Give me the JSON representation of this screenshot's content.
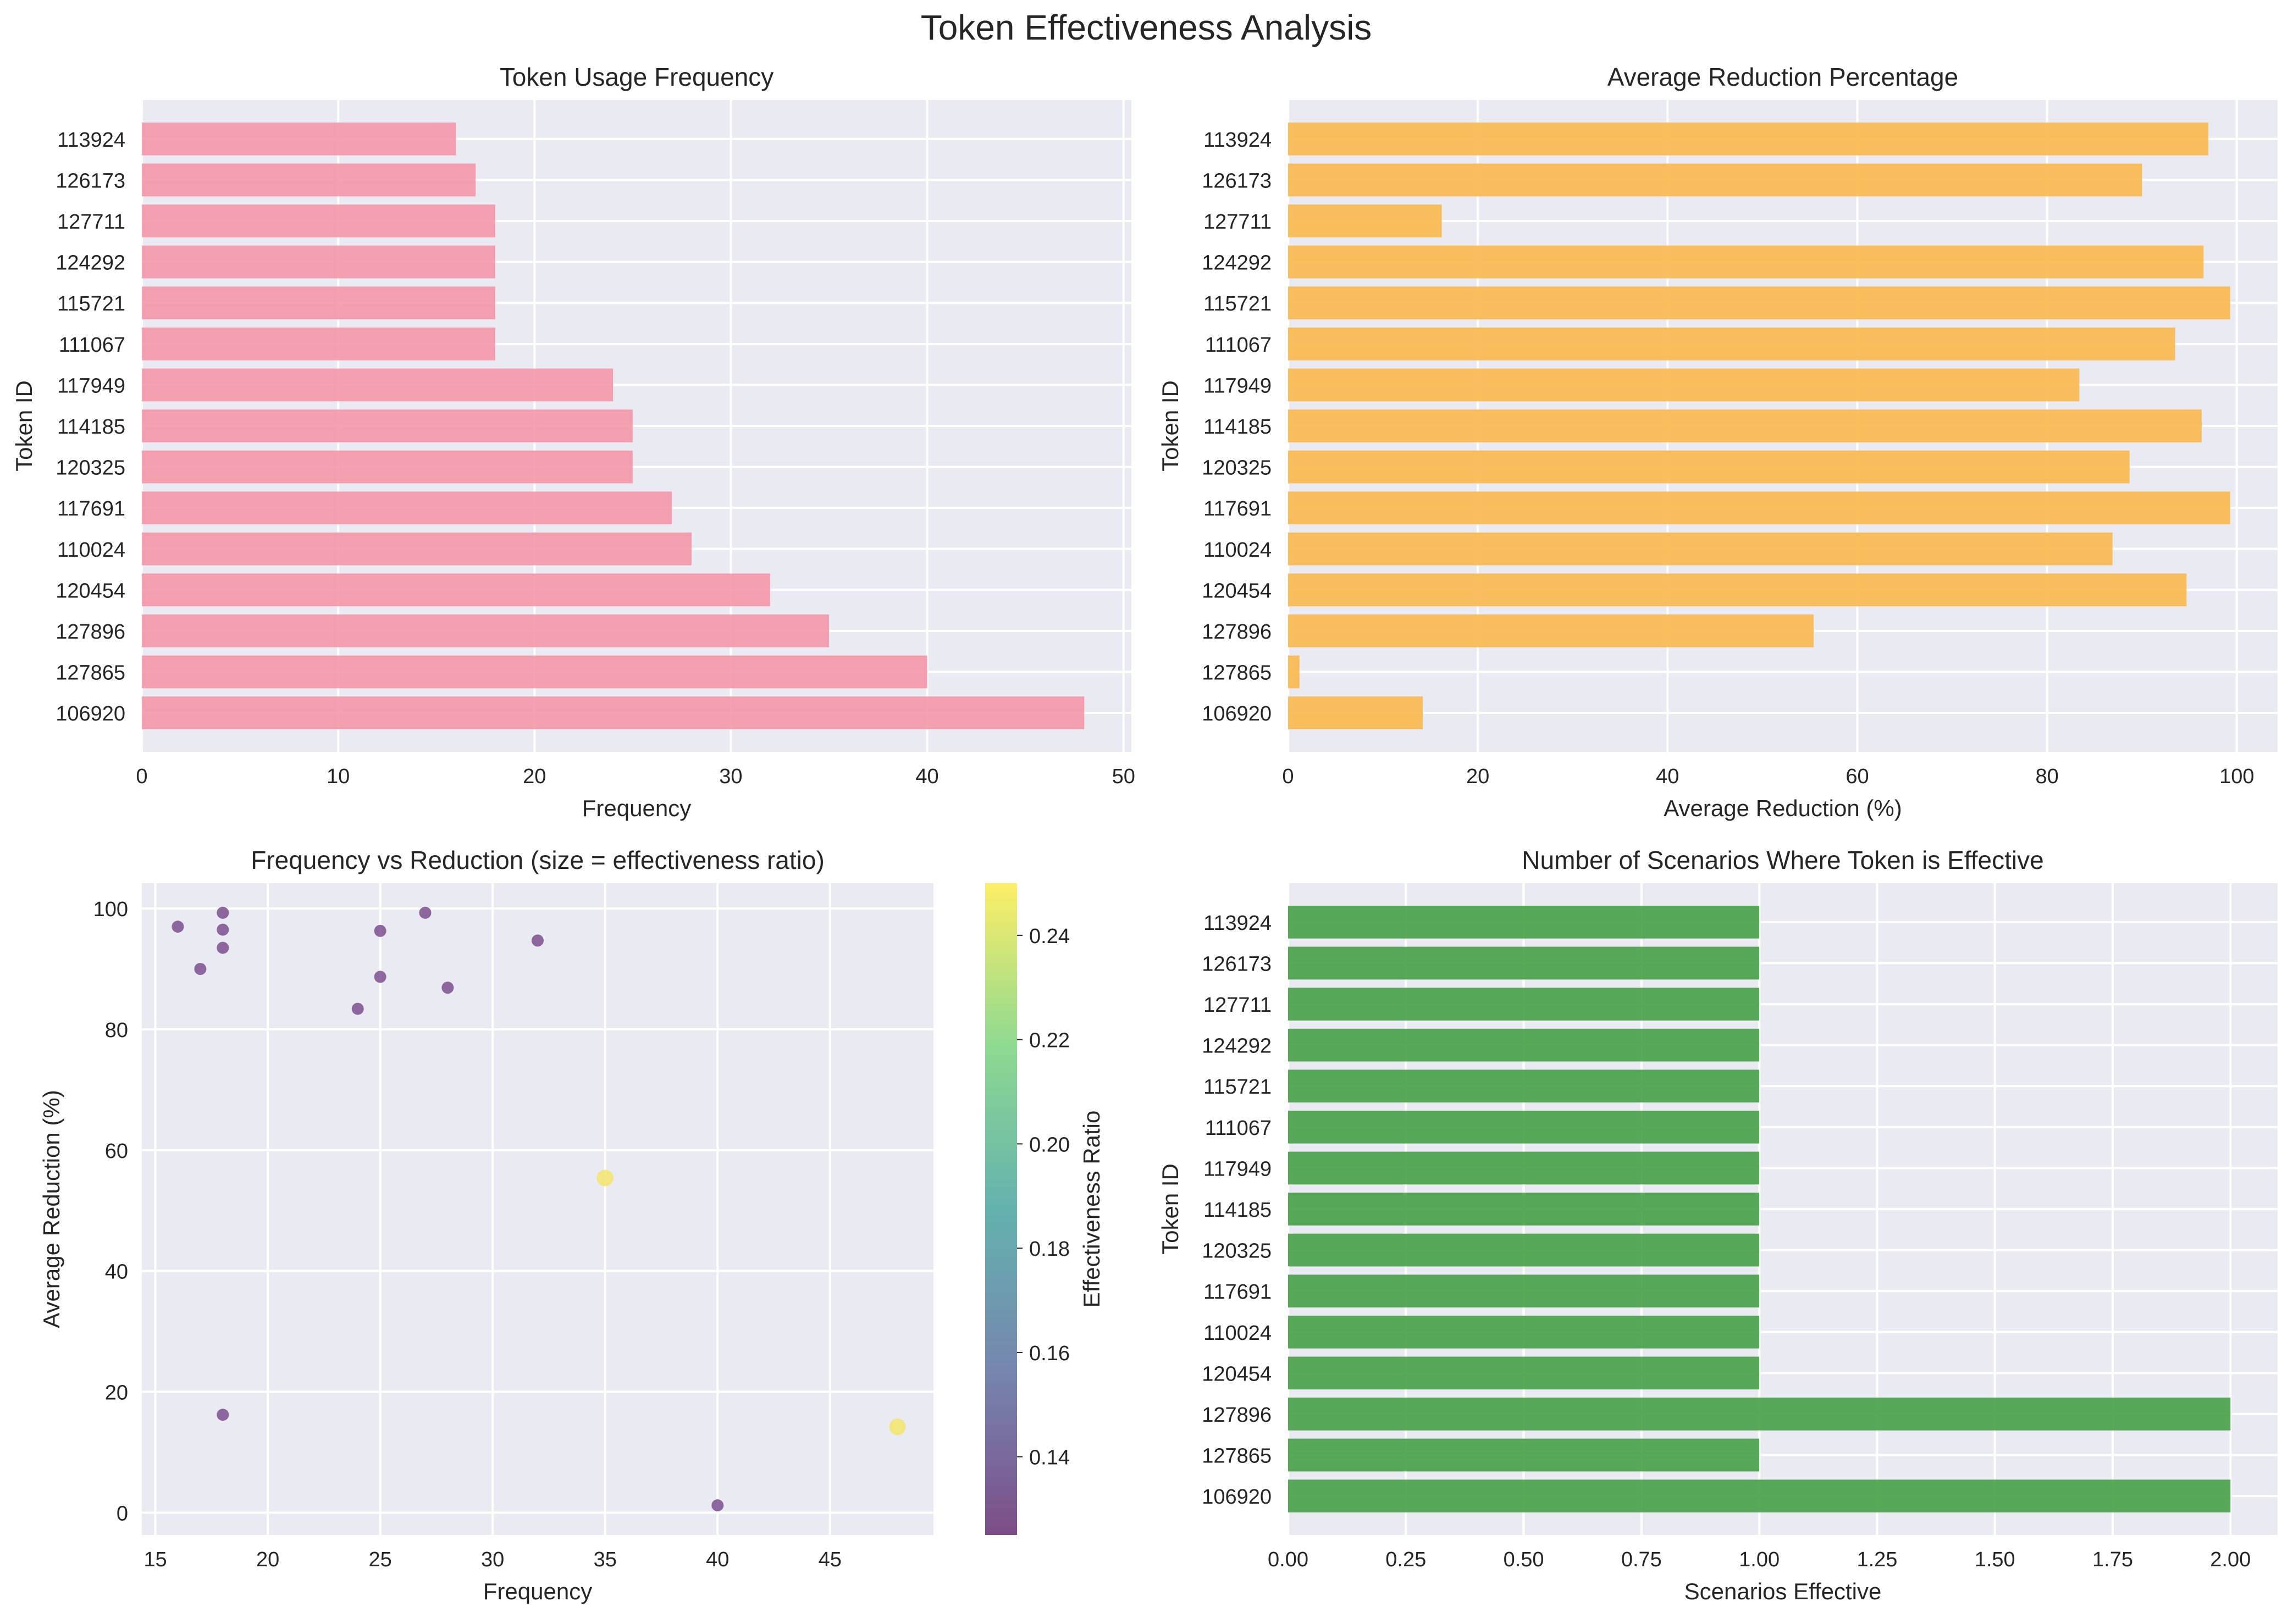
{
  "figure": {
    "suptitle": "Token Effectiveness Analysis"
  },
  "colors": {
    "plot_bg": "#eaeaf2",
    "grid": "#ffffff",
    "frequency_bars": "#f497a9",
    "reduction_bars": "#f9b84b",
    "scenario_bars": "#47a047",
    "scatter_low": "#7b4f8e",
    "scatter_high": "#f2e46a",
    "viridis": [
      "#440154",
      "#3b528b",
      "#21918c",
      "#5ec962",
      "#fde725"
    ]
  },
  "chart_data": [
    {
      "type": "bar",
      "orientation": "horizontal",
      "title": "Token Usage Frequency",
      "xlabel": "Frequency",
      "ylabel": "Token ID",
      "categories": [
        "113924",
        "126173",
        "127711",
        "124292",
        "115721",
        "111067",
        "117949",
        "114185",
        "120325",
        "117691",
        "110024",
        "120454",
        "127896",
        "127865",
        "106920"
      ],
      "values": [
        16,
        17,
        18,
        18,
        18,
        18,
        24,
        25,
        25,
        27,
        28,
        32,
        35,
        40,
        48
      ],
      "xlim": [
        0,
        50.4
      ],
      "xticks": [
        0,
        10,
        20,
        30,
        40,
        50
      ],
      "xtick_labels": [
        "0",
        "10",
        "20",
        "30",
        "40",
        "50"
      ],
      "grid": true
    },
    {
      "type": "bar",
      "orientation": "horizontal",
      "title": "Average Reduction Percentage",
      "xlabel": "Average Reduction (%)",
      "ylabel": "Token ID",
      "categories": [
        "113924",
        "126173",
        "127711",
        "124292",
        "115721",
        "111067",
        "117949",
        "114185",
        "120325",
        "117691",
        "110024",
        "120454",
        "127896",
        "127865",
        "106920"
      ],
      "values": [
        97.0,
        90.0,
        16.2,
        96.5,
        99.3,
        93.5,
        83.4,
        96.3,
        88.7,
        99.3,
        86.9,
        94.7,
        55.4,
        1.2,
        14.2
      ],
      "xlim": [
        0,
        104.3
      ],
      "xticks": [
        0,
        20,
        40,
        60,
        80,
        100
      ],
      "xtick_labels": [
        "0",
        "20",
        "40",
        "60",
        "80",
        "100"
      ],
      "grid": true
    },
    {
      "type": "scatter",
      "title": "Frequency vs Reduction (size = effectiveness ratio)",
      "xlabel": "Frequency",
      "ylabel": "Average Reduction (%)",
      "colorbar_label": "Effectiveness Ratio",
      "x": [
        16,
        17,
        18,
        18,
        18,
        18,
        24,
        25,
        25,
        27,
        28,
        32,
        35,
        40,
        48
      ],
      "y": [
        97.0,
        90.0,
        16.2,
        96.5,
        99.3,
        93.5,
        83.4,
        96.3,
        88.7,
        99.3,
        86.9,
        94.7,
        55.4,
        1.2,
        14.2
      ],
      "c": [
        0.125,
        0.125,
        0.125,
        0.125,
        0.125,
        0.125,
        0.125,
        0.125,
        0.125,
        0.125,
        0.125,
        0.125,
        0.25,
        0.125,
        0.25
      ],
      "xlim": [
        14.4,
        49.6
      ],
      "ylim": [
        -3.7,
        104.2
      ],
      "clim": [
        0.125,
        0.25
      ],
      "xticks": [
        15,
        20,
        25,
        30,
        35,
        40,
        45
      ],
      "xtick_labels": [
        "15",
        "20",
        "25",
        "30",
        "35",
        "40",
        "45"
      ],
      "yticks": [
        0,
        20,
        40,
        60,
        80,
        100
      ],
      "ytick_labels": [
        "0",
        "20",
        "40",
        "60",
        "80",
        "100"
      ],
      "cticks": [
        0.14,
        0.16,
        0.18,
        0.2,
        0.22,
        0.24
      ],
      "ctick_labels": [
        "0.14",
        "0.16",
        "0.18",
        "0.20",
        "0.22",
        "0.24"
      ],
      "grid": true
    },
    {
      "type": "bar",
      "orientation": "horizontal",
      "title": "Number of Scenarios Where Token is Effective",
      "xlabel": "Scenarios Effective",
      "ylabel": "Token ID",
      "categories": [
        "113924",
        "126173",
        "127711",
        "124292",
        "115721",
        "111067",
        "117949",
        "114185",
        "120325",
        "117691",
        "110024",
        "120454",
        "127896",
        "127865",
        "106920"
      ],
      "values": [
        1,
        1,
        1,
        1,
        1,
        1,
        1,
        1,
        1,
        1,
        1,
        1,
        2,
        1,
        2
      ],
      "xlim": [
        0,
        2.1
      ],
      "xticks": [
        0,
        0.25,
        0.5,
        0.75,
        1.0,
        1.25,
        1.5,
        1.75,
        2.0
      ],
      "xtick_labels": [
        "0.00",
        "0.25",
        "0.50",
        "0.75",
        "1.00",
        "1.25",
        "1.50",
        "1.75",
        "2.00"
      ],
      "grid": true
    }
  ]
}
